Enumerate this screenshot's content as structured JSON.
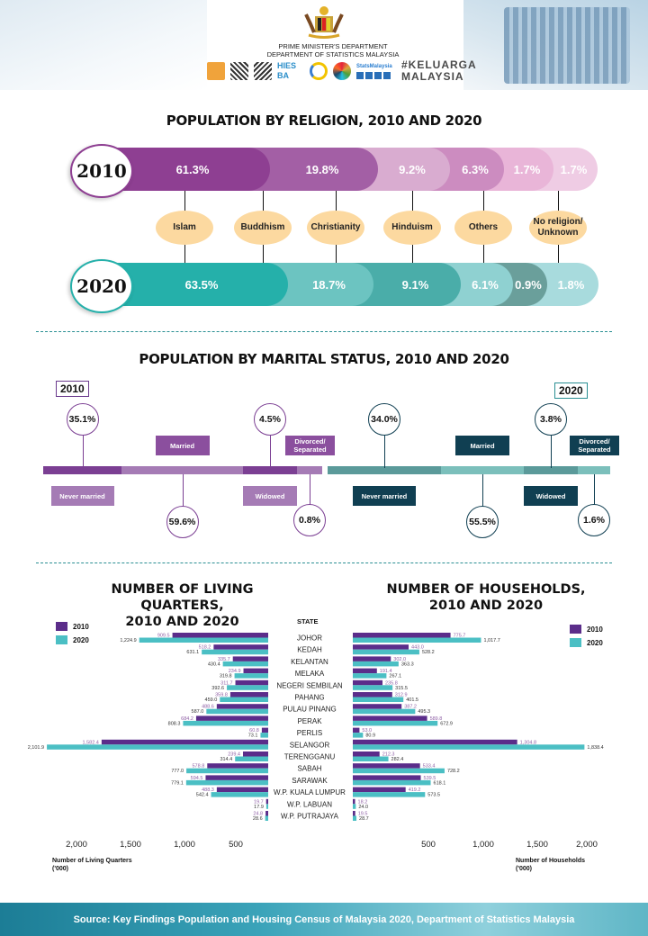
{
  "header": {
    "dept_line1": "PRIME MINISTER'S DEPARTMENT",
    "dept_line2": "DEPARTMENT OF STATISTICS MALAYSIA",
    "logo_hiesba": "HIES BA",
    "logo_stats": "StatsMalaysia",
    "logo_keluarga_1": "#KELUARGA",
    "logo_keluarga_2": "MALAYSIA"
  },
  "religion": {
    "title": "POPULATION BY RELIGION, 2010 AND 2020",
    "year_a": "2010",
    "year_b": "2020",
    "categories": [
      "Islam",
      "Buddhism",
      "Christianity",
      "Hinduism",
      "Others",
      "No religion/ Unknown"
    ],
    "values_2010": [
      "61.3%",
      "19.8%",
      "9.2%",
      "6.3%",
      "1.7%",
      "1.7%"
    ],
    "values_2020": [
      "63.5%",
      "18.7%",
      "9.1%",
      "6.1%",
      "0.9%",
      "1.8%"
    ],
    "colors_2010": [
      "#8e3f92",
      "#a35fa5",
      "#d9acd0",
      "#cc8cc0",
      "#e9b5d8",
      "#efcce4"
    ],
    "colors_2020": [
      "#25b0aa",
      "#6cc4c1",
      "#4aada9",
      "#8fd1d1",
      "#6a9f9b",
      "#a8dbdd"
    ]
  },
  "marital": {
    "title": "POPULATION BY MARITAL  STATUS, 2010 AND 2020",
    "y2010": {
      "year": "2010",
      "never_married": "Never married",
      "never_married_pct": "35.1%",
      "married": "Married",
      "married_pct": "59.6%",
      "widowed": "Widowed",
      "widowed_pct": "4.5%",
      "divorced": "Divorced/ Separated",
      "divorced_pct": "0.8%"
    },
    "y2020": {
      "year": "2020",
      "never_married": "Never married",
      "never_married_pct": "34.0%",
      "married": "Married",
      "married_pct": "55.5%",
      "widowed": "Widowed",
      "widowed_pct": "3.8%",
      "divorced": "Divorced/ Separated",
      "divorced_pct": "1.6%"
    }
  },
  "chart_data": [
    {
      "type": "bar",
      "title": "NUMBER OF LIVING QUARTERS, 2010 AND 2020",
      "xlabel": "Number of Living Quarters ('000)",
      "categories_label": "STATE",
      "categories": [
        "JOHOR",
        "KEDAH",
        "KELANTAN",
        "MELAKA",
        "NEGERI SEMBILAN",
        "PAHANG",
        "PULAU PINANG",
        "PERAK",
        "PERLIS",
        "SELANGOR",
        "TERENGGANU",
        "SABAH",
        "SARAWAK",
        "W.P. KUALA LUMPUR",
        "W.P. LABUAN",
        "W.P. PUTRAJAYA"
      ],
      "series": [
        {
          "name": "2010",
          "color": "#5b2d8a",
          "values": [
            909.5,
            518.2,
            335.7,
            234.9,
            311.7,
            359.8,
            488.6,
            684.2,
            60.8,
            1582.4,
            239.4,
            578.8,
            594.5,
            488.3,
            19.7,
            24.8
          ]
        },
        {
          "name": "2020",
          "color": "#4bbfc4",
          "values": [
            1224.9,
            631.1,
            430.4,
            319.8,
            392.6,
            459.0,
            587.0,
            808.3,
            73.1,
            2101.9,
            314.4,
            777.0,
            779.1,
            542.4,
            17.9,
            28.6
          ]
        }
      ],
      "tick_labels": [
        "2,000",
        "1,500",
        "1,000",
        "500"
      ],
      "xlim": [
        0,
        2200
      ],
      "legend": "top-left"
    },
    {
      "type": "bar",
      "title": "NUMBER OF HOUSEHOLDS, 2010 AND 2020",
      "xlabel": "Number of Households ('000)",
      "categories": [
        "JOHOR",
        "KEDAH",
        "KELANTAN",
        "MELAKA",
        "NEGERI SEMBILAN",
        "PAHANG",
        "PULAU PINANG",
        "PERAK",
        "PERLIS",
        "SELANGOR",
        "TERENGGANU",
        "SABAH",
        "SARAWAK",
        "W.P. KUALA LUMPUR",
        "W.P. LABUAN",
        "W.P. PUTRAJAYA"
      ],
      "series": [
        {
          "name": "2010",
          "color": "#5b2d8a",
          "values": [
            775.7,
            443.0,
            302.0,
            191.4,
            235.8,
            312.9,
            387.2,
            589.8,
            53.0,
            1304.8,
            212.3,
            533.4,
            539.5,
            419.2,
            18.2,
            19.5
          ]
        },
        {
          "name": "2020",
          "color": "#4bbfc4",
          "values": [
            1017.7,
            528.2,
            363.3,
            267.1,
            315.5,
            401.5,
            495.3,
            672.9,
            80.9,
            1838.4,
            282.4,
            728.2,
            618.1,
            573.5,
            24.0,
            28.7
          ]
        }
      ],
      "tick_labels": [
        "500",
        "1,000",
        "1,500",
        "2,000"
      ],
      "xlim": [
        0,
        2000
      ],
      "legend": "top-right"
    }
  ],
  "living_quarters": {
    "title1": "NUMBER OF LIVING QUARTERS,",
    "title2": "2010 AND 2020",
    "axis_title1": "Number of Living Quarters",
    "axis_title2": "('000)",
    "legend_2010": "2010",
    "legend_2020": "2020"
  },
  "households": {
    "title1": "NUMBER OF HOUSEHOLDS,",
    "title2": "2010 AND 2020",
    "axis_title1": "Number of Households",
    "axis_title2": "('000)",
    "legend_2010": "2010",
    "legend_2020": "2020"
  },
  "state_label": "STATE",
  "footer": {
    "source": "Source: Key Findings Population and Housing Census of Malaysia  2020, Department of Statistics Malaysia"
  }
}
